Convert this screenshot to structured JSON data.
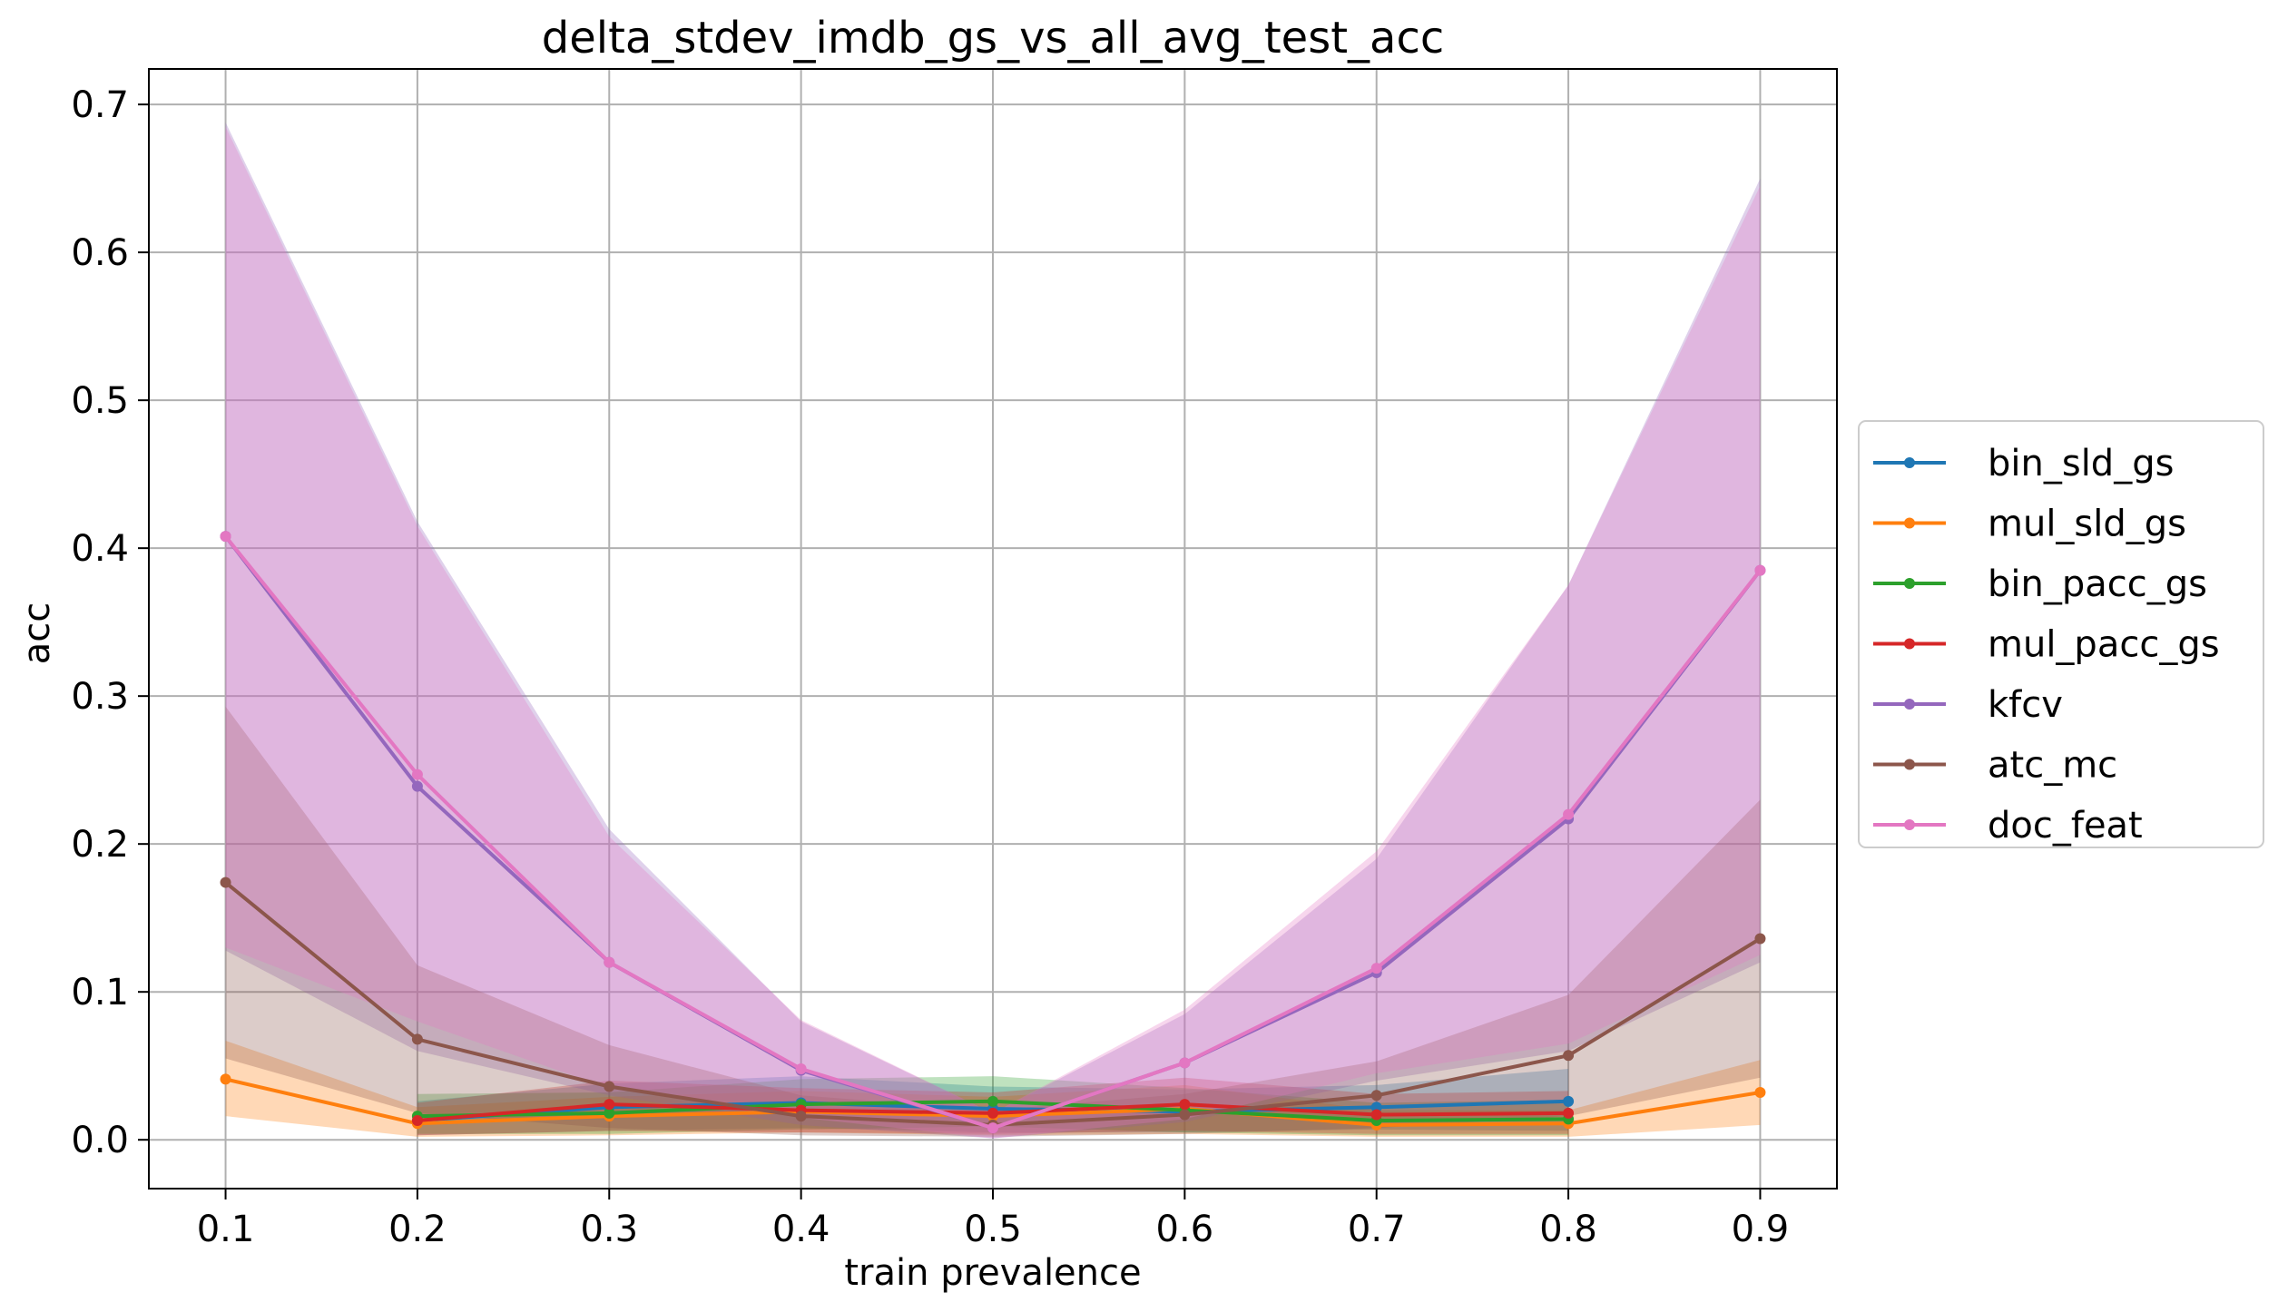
{
  "chart_data": {
    "type": "line",
    "title": "delta_stdev_imdb_gs_vs_all_avg_test_acc",
    "xlabel": "train prevalence",
    "ylabel": "acc",
    "x": [
      0.1,
      0.2,
      0.3,
      0.4,
      0.5,
      0.6,
      0.7,
      0.8,
      0.9
    ],
    "x_tick_labels": [
      "0.1",
      "0.2",
      "0.3",
      "0.4",
      "0.5",
      "0.6",
      "0.7",
      "0.8",
      "0.9"
    ],
    "y_ticks": [
      0.0,
      0.1,
      0.2,
      0.3,
      0.4,
      0.5,
      0.6,
      0.7
    ],
    "y_tick_labels": [
      "0.0",
      "0.1",
      "0.2",
      "0.3",
      "0.4",
      "0.5",
      "0.6",
      "0.7"
    ],
    "xlim": [
      0.06,
      0.94
    ],
    "ylim": [
      -0.033,
      0.724
    ],
    "grid": true,
    "legend_position": "center-right outside",
    "series": [
      {
        "name": "bin_sld_gs",
        "color": "#1f77b4",
        "values": [
          null,
          0.013,
          0.022,
          0.025,
          0.021,
          0.019,
          0.022,
          0.026,
          null
        ],
        "band_lower": [
          null,
          0.003,
          0.006,
          0.008,
          0.005,
          0.005,
          0.007,
          0.006,
          null
        ],
        "band_upper": [
          null,
          0.026,
          0.038,
          0.043,
          0.036,
          0.034,
          0.037,
          0.048,
          null
        ]
      },
      {
        "name": "mul_sld_gs",
        "color": "#ff7f0e",
        "values": [
          0.041,
          0.011,
          0.016,
          0.019,
          0.016,
          0.021,
          0.01,
          0.011,
          0.032
        ],
        "band_lower": [
          0.016,
          0.002,
          0.003,
          0.005,
          0.003,
          0.004,
          0.002,
          0.002,
          0.01
        ],
        "band_upper": [
          0.067,
          0.022,
          0.029,
          0.033,
          0.029,
          0.037,
          0.02,
          0.02,
          0.054
        ]
      },
      {
        "name": "bin_pacc_gs",
        "color": "#2ca02c",
        "values": [
          null,
          0.016,
          0.018,
          0.024,
          0.026,
          0.02,
          0.013,
          0.014,
          null
        ],
        "band_lower": [
          null,
          0.004,
          0.004,
          0.007,
          0.009,
          0.005,
          0.003,
          0.003,
          null
        ],
        "band_upper": [
          null,
          0.031,
          0.032,
          0.041,
          0.043,
          0.035,
          0.025,
          0.027,
          null
        ]
      },
      {
        "name": "mul_pacc_gs",
        "color": "#d62728",
        "values": [
          null,
          0.013,
          0.024,
          0.02,
          0.018,
          0.024,
          0.017,
          0.018,
          null
        ],
        "band_lower": [
          null,
          0.003,
          0.006,
          0.005,
          0.004,
          0.006,
          0.004,
          0.004,
          null
        ],
        "band_upper": [
          null,
          0.025,
          0.04,
          0.035,
          0.032,
          0.042,
          0.031,
          0.033,
          null
        ]
      },
      {
        "name": "kfcv",
        "color": "#9467bd",
        "values": [
          0.408,
          0.239,
          0.12,
          0.047,
          0.008,
          0.052,
          0.113,
          0.217,
          0.385
        ],
        "band_lower": [
          0.128,
          0.06,
          0.03,
          0.01,
          0.001,
          0.012,
          0.04,
          0.06,
          0.12
        ],
        "band_upper": [
          0.688,
          0.418,
          0.21,
          0.08,
          0.018,
          0.085,
          0.19,
          0.375,
          0.65
        ]
      },
      {
        "name": "atc_mc",
        "color": "#8c564b",
        "values": [
          0.174,
          0.068,
          0.036,
          0.016,
          0.01,
          0.017,
          0.03,
          0.057,
          0.136
        ],
        "band_lower": [
          0.055,
          0.018,
          0.008,
          0.003,
          0.002,
          0.004,
          0.008,
          0.016,
          0.042
        ],
        "band_upper": [
          0.293,
          0.118,
          0.064,
          0.03,
          0.02,
          0.031,
          0.053,
          0.098,
          0.23
        ]
      },
      {
        "name": "doc_feat",
        "color": "#e377c2",
        "values": [
          0.408,
          0.247,
          0.12,
          0.048,
          0.008,
          0.052,
          0.116,
          0.22,
          0.385
        ],
        "band_lower": [
          0.13,
          0.08,
          0.035,
          0.015,
          0.001,
          0.014,
          0.045,
          0.065,
          0.125
        ],
        "band_upper": [
          0.685,
          0.415,
          0.205,
          0.081,
          0.018,
          0.088,
          0.195,
          0.375,
          0.645
        ]
      }
    ]
  }
}
